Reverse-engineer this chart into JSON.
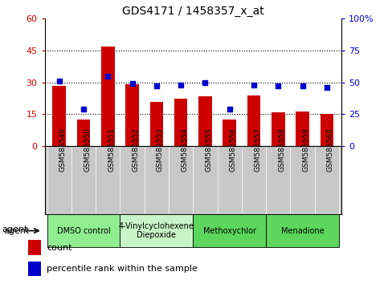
{
  "title": "GDS4171 / 1458357_x_at",
  "samples": [
    "GSM585549",
    "GSM585550",
    "GSM585551",
    "GSM585552",
    "GSM585553",
    "GSM585554",
    "GSM585555",
    "GSM585556",
    "GSM585557",
    "GSM585558",
    "GSM585559",
    "GSM585560"
  ],
  "counts": [
    28.5,
    12.5,
    47.0,
    29.0,
    21.0,
    22.5,
    23.5,
    12.5,
    24.0,
    16.0,
    16.5,
    15.0
  ],
  "percentile_ranks": [
    51,
    29,
    55,
    49,
    47,
    48,
    50,
    29,
    48,
    47,
    47,
    46
  ],
  "bar_color": "#cc0000",
  "dot_color": "#0000cc",
  "ylim_left": [
    0,
    60
  ],
  "ylim_right": [
    0,
    100
  ],
  "yticks_left": [
    0,
    15,
    30,
    45,
    60
  ],
  "ytick_labels_left": [
    "0",
    "15",
    "30",
    "45",
    "60"
  ],
  "yticks_right": [
    0,
    25,
    50,
    75,
    100
  ],
  "ytick_labels_right": [
    "0",
    "25",
    "50",
    "75",
    "100%"
  ],
  "left_tick_color": "#cc0000",
  "right_tick_color": "#0000cc",
  "agents": [
    {
      "label": "DMSO control",
      "start": 0,
      "end": 3,
      "color": "#90ee90"
    },
    {
      "label": "4-Vinylcyclohexene\nDiepoxide",
      "start": 3,
      "end": 6,
      "color": "#c8f5c8"
    },
    {
      "label": "Methoxychlor",
      "start": 6,
      "end": 9,
      "color": "#5cd65c"
    },
    {
      "label": "Menadione",
      "start": 9,
      "end": 12,
      "color": "#5cd65c"
    }
  ],
  "agent_label": "agent",
  "legend_count_label": "count",
  "legend_pct_label": "percentile rank within the sample",
  "hline_values": [
    15,
    30,
    45
  ],
  "hline_style": "dotted",
  "hline_color": "black",
  "xtick_bg_color": "#c8c8c8",
  "plot_bg_color": "#ffffff",
  "bar_width": 0.55
}
